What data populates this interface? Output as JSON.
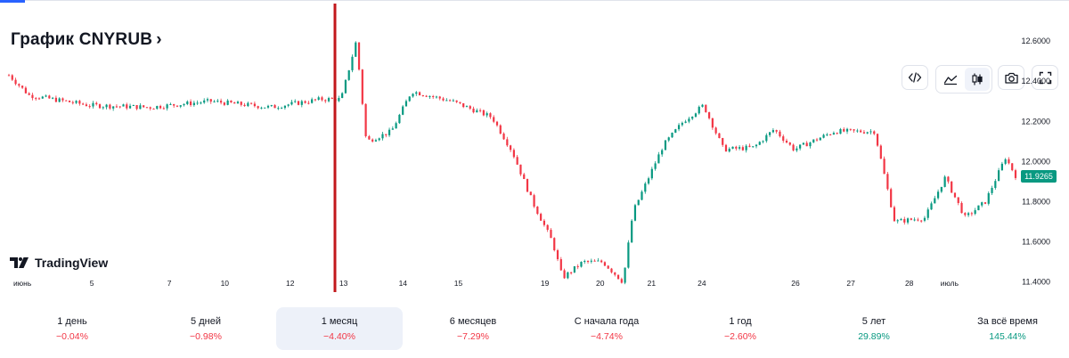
{
  "header": {
    "title": "График CNYRUB",
    "chevron": "›"
  },
  "toolbar": {
    "icons": [
      "embed-code-icon",
      "area-chart-icon",
      "candles-icon",
      "camera-icon",
      "fullscreen-icon"
    ]
  },
  "brand": {
    "name": "TradingView"
  },
  "colors": {
    "up": "#089981",
    "down": "#f23645",
    "highlight": "#c2171b",
    "price_tag": "#089981",
    "active_period_bg": "#edf1f9"
  },
  "chart_data": {
    "type": "candlestick",
    "title": "График CNYRUB",
    "ylim": [
      11.35,
      12.68
    ],
    "y_ticks": [
      "12.6000",
      "12.4000",
      "12.2000",
      "12.0000",
      "11.8000",
      "11.6000",
      "11.4000"
    ],
    "last_price": "11.9265",
    "x_ticks": [
      "июнь",
      "5",
      "7",
      "10",
      "12",
      "13",
      "14",
      "15",
      "19",
      "20",
      "21",
      "24",
      "26",
      "27",
      "28",
      "июль"
    ],
    "grid": false,
    "series_outline": [
      [
        0,
        12.43
      ],
      [
        0.02,
        12.33
      ],
      [
        0.08,
        12.28
      ],
      [
        0.14,
        12.27
      ],
      [
        0.2,
        12.3
      ],
      [
        0.26,
        12.27
      ],
      [
        0.31,
        12.31
      ],
      [
        0.33,
        12.31
      ],
      [
        0.345,
        12.6
      ],
      [
        0.355,
        12.1
      ],
      [
        0.38,
        12.15
      ],
      [
        0.4,
        12.35
      ],
      [
        0.44,
        12.3
      ],
      [
        0.48,
        12.22
      ],
      [
        0.5,
        12.05
      ],
      [
        0.52,
        11.8
      ],
      [
        0.54,
        11.6
      ],
      [
        0.55,
        11.42
      ],
      [
        0.57,
        11.5
      ],
      [
        0.59,
        11.5
      ],
      [
        0.61,
        11.4
      ],
      [
        0.62,
        11.75
      ],
      [
        0.65,
        12.08
      ],
      [
        0.67,
        12.2
      ],
      [
        0.69,
        12.28
      ],
      [
        0.71,
        12.06
      ],
      [
        0.74,
        12.07
      ],
      [
        0.76,
        12.16
      ],
      [
        0.78,
        12.06
      ],
      [
        0.82,
        12.15
      ],
      [
        0.86,
        12.15
      ],
      [
        0.88,
        11.7
      ],
      [
        0.91,
        11.72
      ],
      [
        0.93,
        11.92
      ],
      [
        0.95,
        11.72
      ],
      [
        0.97,
        11.8
      ],
      [
        0.99,
        12.02
      ],
      [
        1.0,
        11.93
      ]
    ]
  },
  "periods": [
    {
      "label": "1 день",
      "change": "−0.04%",
      "dir": "neg"
    },
    {
      "label": "5 дней",
      "change": "−0.98%",
      "dir": "neg"
    },
    {
      "label": "1 месяц",
      "change": "−4.40%",
      "dir": "neg",
      "active": true
    },
    {
      "label": "6 месяцев",
      "change": "−7.29%",
      "dir": "neg"
    },
    {
      "label": "С начала года",
      "change": "−4.74%",
      "dir": "neg"
    },
    {
      "label": "1 год",
      "change": "−2.60%",
      "dir": "neg"
    },
    {
      "label": "5 лет",
      "change": "29.89%",
      "dir": "pos"
    },
    {
      "label": "За всё время",
      "change": "145.44%",
      "dir": "pos"
    }
  ]
}
